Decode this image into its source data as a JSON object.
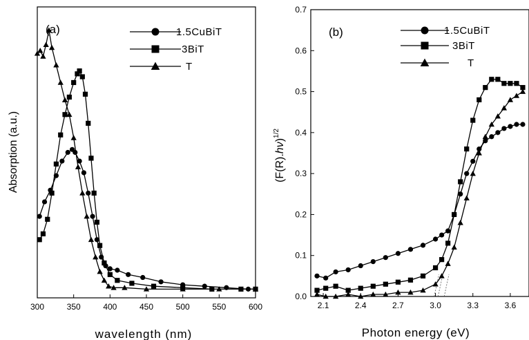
{
  "chart_data": [
    {
      "type": "line",
      "panel_label": "(a)",
      "xlabel": "wavelength (nm)",
      "ylabel": "Absorption (a.u.)",
      "xlim": [
        300,
        600
      ],
      "ylim": [
        0,
        1
      ],
      "x_ticks": [
        300,
        350,
        400,
        450,
        500,
        550,
        600
      ],
      "y_ticks": [],
      "legend_position": "top-right",
      "series": [
        {
          "name": "1.5CuBiT",
          "marker": "circle",
          "x": [
            303,
            310,
            318,
            326,
            334,
            342,
            348,
            352,
            358,
            364,
            370,
            376,
            382,
            388,
            394,
            400,
            410,
            425,
            445,
            470,
            500,
            530,
            560,
            590,
            600
          ],
          "y": [
            0.28,
            0.33,
            0.37,
            0.42,
            0.47,
            0.5,
            0.51,
            0.5,
            0.47,
            0.43,
            0.36,
            0.28,
            0.2,
            0.14,
            0.11,
            0.1,
            0.095,
            0.08,
            0.07,
            0.055,
            0.045,
            0.04,
            0.035,
            0.03,
            0.03
          ]
        },
        {
          "name": "3BiT",
          "marker": "square",
          "x": [
            303,
            308,
            314,
            320,
            326,
            332,
            338,
            344,
            350,
            355,
            358,
            362,
            366,
            370,
            374,
            378,
            382,
            386,
            392,
            400,
            410,
            430,
            460,
            500,
            540,
            580,
            600
          ],
          "y": [
            0.2,
            0.22,
            0.27,
            0.36,
            0.46,
            0.56,
            0.63,
            0.69,
            0.74,
            0.77,
            0.78,
            0.76,
            0.7,
            0.6,
            0.48,
            0.36,
            0.26,
            0.18,
            0.12,
            0.08,
            0.06,
            0.05,
            0.04,
            0.035,
            0.03,
            0.03,
            0.03
          ]
        },
        {
          "name": "T",
          "marker": "triangle",
          "x": [
            300,
            304,
            308,
            312,
            316,
            320,
            326,
            332,
            338,
            344,
            350,
            356,
            362,
            368,
            374,
            380,
            386,
            392,
            398,
            405,
            420,
            450,
            500,
            550,
            600
          ],
          "y": [
            0.84,
            0.85,
            0.83,
            0.87,
            0.92,
            0.86,
            0.8,
            0.74,
            0.68,
            0.63,
            0.55,
            0.45,
            0.36,
            0.28,
            0.2,
            0.14,
            0.09,
            0.06,
            0.04,
            0.035,
            0.035,
            0.03,
            0.03,
            0.03,
            0.03
          ]
        }
      ]
    },
    {
      "type": "line",
      "panel_label": "(b)",
      "xlabel": "Photon energy (eV)",
      "ylabel": "(F(R).hν)^1/2",
      "ylabel_main": "(F(R).",
      "ylabel_italic": "hν",
      "ylabel_close": ")",
      "ylabel_sup": "1/2",
      "xlim": [
        2.0,
        3.75
      ],
      "ylim": [
        0.0,
        0.7
      ],
      "x_ticks": [
        2.1,
        2.4,
        2.7,
        3.0,
        3.3,
        3.6
      ],
      "x_tick_labels": [
        "2.1",
        "2.4",
        "2.7",
        "3.0",
        "3.3",
        "3.6"
      ],
      "y_ticks": [
        0.0,
        0.1,
        0.2,
        0.3,
        0.4,
        0.5,
        0.6,
        0.7
      ],
      "y_tick_labels": [
        "0.0",
        "0.1",
        "0.2",
        "0.3",
        "0.4",
        "0.5",
        "0.6",
        "0.7"
      ],
      "legend_position": "top-right",
      "series": [
        {
          "name": "1.5CuBiT",
          "marker": "circle",
          "x": [
            2.05,
            2.12,
            2.2,
            2.3,
            2.4,
            2.5,
            2.6,
            2.7,
            2.8,
            2.9,
            3.0,
            3.05,
            3.1,
            3.15,
            3.2,
            3.25,
            3.3,
            3.35,
            3.4,
            3.45,
            3.5,
            3.55,
            3.6,
            3.65,
            3.7
          ],
          "y": [
            0.05,
            0.045,
            0.06,
            0.065,
            0.075,
            0.085,
            0.095,
            0.105,
            0.115,
            0.125,
            0.14,
            0.15,
            0.16,
            0.2,
            0.25,
            0.3,
            0.33,
            0.36,
            0.38,
            0.39,
            0.4,
            0.41,
            0.415,
            0.42,
            0.42
          ]
        },
        {
          "name": "3BiT",
          "marker": "square",
          "x": [
            2.05,
            2.12,
            2.2,
            2.3,
            2.4,
            2.5,
            2.6,
            2.7,
            2.8,
            2.9,
            3.0,
            3.05,
            3.1,
            3.15,
            3.2,
            3.25,
            3.3,
            3.35,
            3.4,
            3.45,
            3.5,
            3.55,
            3.6,
            3.65,
            3.7
          ],
          "y": [
            0.015,
            0.02,
            0.025,
            0.015,
            0.02,
            0.025,
            0.03,
            0.035,
            0.04,
            0.05,
            0.07,
            0.09,
            0.13,
            0.2,
            0.28,
            0.36,
            0.43,
            0.48,
            0.51,
            0.53,
            0.53,
            0.52,
            0.52,
            0.52,
            0.51
          ]
        },
        {
          "name": "T",
          "marker": "triangle",
          "x": [
            2.05,
            2.12,
            2.2,
            2.3,
            2.4,
            2.5,
            2.6,
            2.7,
            2.8,
            2.9,
            3.0,
            3.05,
            3.1,
            3.15,
            3.2,
            3.25,
            3.3,
            3.35,
            3.4,
            3.45,
            3.5,
            3.55,
            3.6,
            3.65,
            3.7
          ],
          "y": [
            0.005,
            0.0,
            0.0,
            0.005,
            0.0,
            0.005,
            0.005,
            0.01,
            0.01,
            0.015,
            0.03,
            0.05,
            0.08,
            0.12,
            0.18,
            0.24,
            0.3,
            0.35,
            0.39,
            0.42,
            0.44,
            0.46,
            0.48,
            0.49,
            0.5
          ]
        }
      ]
    }
  ]
}
